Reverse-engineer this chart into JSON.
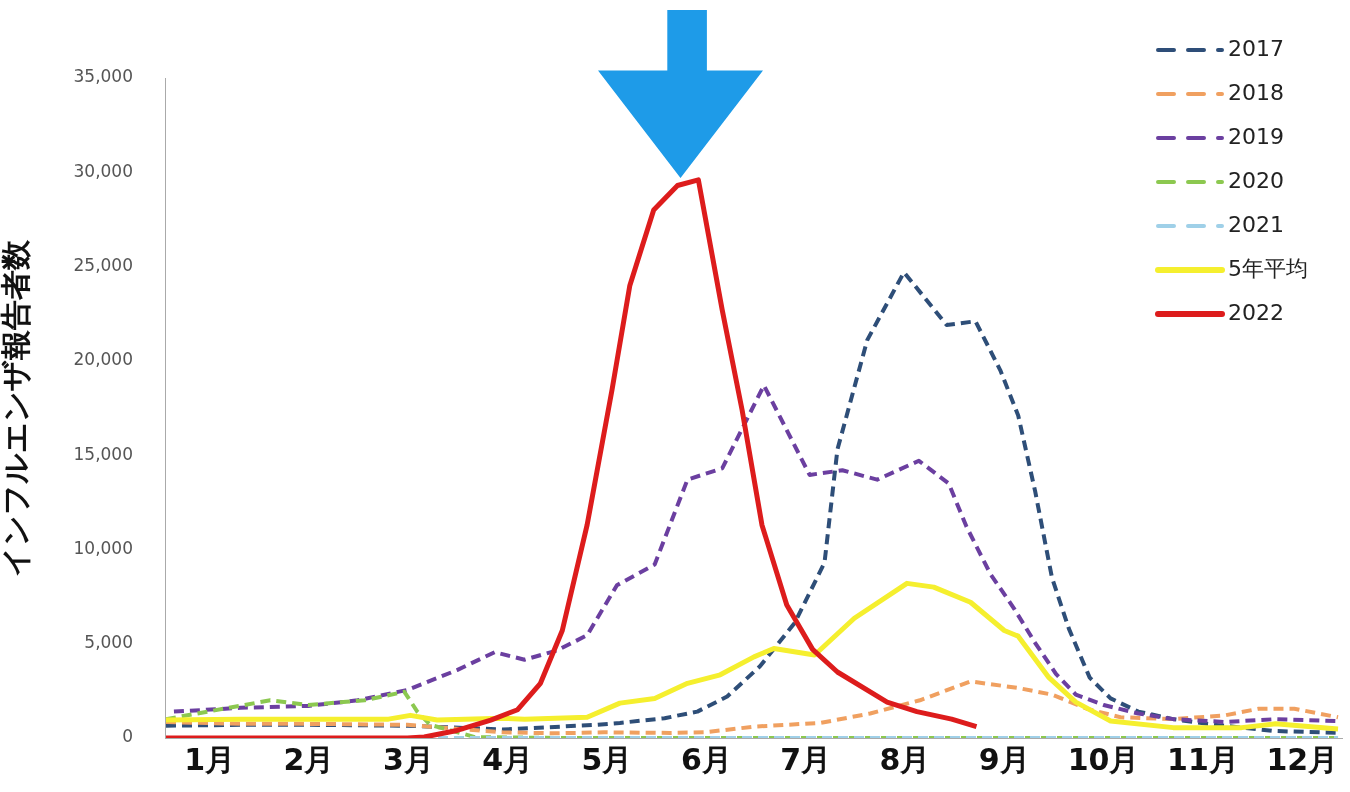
{
  "chart_data": {
    "type": "line",
    "ylabel": "インフルエンザ報告者数",
    "xlim": [
      0.55,
      12.4
    ],
    "xticks": [
      {
        "value": 1,
        "label": "1月"
      },
      {
        "value": 2,
        "label": "2月"
      },
      {
        "value": 3,
        "label": "3月"
      },
      {
        "value": 4,
        "label": "4月"
      },
      {
        "value": 5,
        "label": "5月"
      },
      {
        "value": 6,
        "label": "6月"
      },
      {
        "value": 7,
        "label": "7月"
      },
      {
        "value": 8,
        "label": "8月"
      },
      {
        "value": 9,
        "label": "9月"
      },
      {
        "value": 10,
        "label": "10月"
      },
      {
        "value": 11,
        "label": "11月"
      },
      {
        "value": 12,
        "label": "12月"
      }
    ],
    "ylim": [
      0,
      35000
    ],
    "yticks": [
      0,
      {
        "value": 5000,
        "label": "5,000"
      },
      {
        "value": 10000,
        "label": "10,000"
      },
      {
        "value": 15000,
        "label": "15,000"
      },
      {
        "value": 20000,
        "label": "20,000"
      },
      {
        "value": 25000,
        "label": "25,000"
      },
      {
        "value": 30000,
        "label": "30,000"
      },
      {
        "value": 35000,
        "label": "35,000"
      }
    ],
    "grid": false,
    "legend": "top right",
    "marker": "none",
    "series": [
      {
        "name": "2017",
        "color": "#2e4e78",
        "line_style": "dashed",
        "x": [
          0.56,
          1.31,
          1.99,
          2.99,
          3.95,
          4.9,
          5.13,
          5.58,
          5.91,
          6.21,
          6.54,
          6.89,
          7.19,
          7.32,
          7.62,
          7.99,
          8.42,
          8.71,
          8.96,
          9.14,
          9.31,
          9.48,
          9.65,
          9.86,
          10.07,
          10.35,
          10.7,
          11.04,
          11.39,
          11.73,
          12.36
        ],
        "values": [
          650,
          700,
          700,
          650,
          450,
          700,
          800,
          1050,
          1400,
          2200,
          3800,
          6100,
          9300,
          15300,
          21100,
          24700,
          21900,
          22100,
          19500,
          17100,
          13100,
          8500,
          5800,
          3200,
          2100,
          1400,
          1000,
          750,
          550,
          370,
          270
        ]
      },
      {
        "name": "2018",
        "color": "#f0a060",
        "line_style": "dashed",
        "x": [
          0.56,
          1.31,
          1.99,
          2.99,
          3.22,
          3.95,
          4.5,
          4.97,
          5.64,
          5.98,
          6.48,
          7.15,
          7.65,
          8.15,
          8.66,
          9.14,
          9.48,
          9.83,
          10.17,
          10.7,
          11.22,
          11.56,
          11.92,
          12.36
        ],
        "values": [
          850,
          750,
          750,
          700,
          600,
          300,
          250,
          300,
          270,
          300,
          600,
          800,
          1300,
          2000,
          3000,
          2650,
          2300,
          1550,
          1100,
          1000,
          1200,
          1550,
          1550,
          1100
        ]
      },
      {
        "name": "2019",
        "color": "#6b3fa0",
        "line_style": "dashed",
        "x": [
          0.64,
          1.31,
          1.99,
          2.49,
          2.99,
          3.49,
          3.87,
          4.17,
          4.5,
          4.8,
          5.1,
          5.48,
          5.81,
          6.16,
          6.58,
          7.04,
          7.37,
          7.72,
          8.14,
          8.44,
          8.62,
          8.86,
          9.1,
          9.31,
          9.52,
          9.72,
          10.0,
          10.35,
          10.7,
          11.22,
          11.73,
          12.36
        ],
        "values": [
          1400,
          1600,
          1700,
          2000,
          2550,
          3600,
          4550,
          4150,
          4650,
          5450,
          8100,
          9200,
          13700,
          14300,
          18700,
          13950,
          14200,
          13700,
          14700,
          13500,
          11200,
          8700,
          6850,
          5050,
          3400,
          2300,
          1750,
          1300,
          1000,
          850,
          1000,
          900
        ]
      },
      {
        "name": "2020",
        "color": "#8cc850",
        "line_style": "dashed",
        "x": [
          0.56,
          0.98,
          1.61,
          1.99,
          2.56,
          2.96,
          3.09,
          3.22,
          3.67,
          4.5,
          6.0,
          8.0,
          10.0,
          12.36
        ],
        "values": [
          1000,
          1400,
          2000,
          1750,
          2000,
          2450,
          1400,
          700,
          50,
          0,
          0,
          0,
          0,
          0
        ]
      },
      {
        "name": "2021",
        "color": "#9fd0e8",
        "line_style": "dashed",
        "x": [
          0.56,
          4.0,
          8.0,
          12.36
        ],
        "values": [
          0,
          0,
          0,
          0
        ]
      },
      {
        "name": "5年平均",
        "color": "#f5ef2e",
        "line_style": "solid",
        "x": [
          0.56,
          1.31,
          1.99,
          2.8,
          3.02,
          3.29,
          3.95,
          4.17,
          4.8,
          5.13,
          5.48,
          5.81,
          6.14,
          6.48,
          6.68,
          7.09,
          7.49,
          8.02,
          8.29,
          8.66,
          9.0,
          9.14,
          9.45,
          9.72,
          10.07,
          10.7,
          11.39,
          11.73,
          12.36
        ],
        "values": [
          950,
          1000,
          1000,
          1000,
          1200,
          950,
          1050,
          1000,
          1100,
          1850,
          2100,
          2900,
          3350,
          4300,
          4750,
          4400,
          6350,
          8200,
          8000,
          7200,
          5700,
          5400,
          3200,
          1900,
          900,
          550,
          550,
          750,
          480
        ]
      },
      {
        "name": "2022",
        "color": "#dd1c1c",
        "line_style": "solid",
        "x": [
          0.56,
          2.99,
          3.16,
          3.49,
          3.83,
          4.1,
          4.33,
          4.55,
          4.8,
          5.05,
          5.23,
          5.47,
          5.71,
          5.92,
          6.16,
          6.36,
          6.56,
          6.81,
          7.07,
          7.32,
          7.82,
          8.12,
          8.47,
          8.72
        ],
        "values": [
          0,
          0,
          50,
          400,
          950,
          1500,
          2900,
          5700,
          11300,
          18450,
          24000,
          28000,
          29300,
          29600,
          22700,
          17400,
          11300,
          7050,
          4700,
          3500,
          1900,
          1400,
          1000,
          600
        ]
      }
    ]
  }
}
